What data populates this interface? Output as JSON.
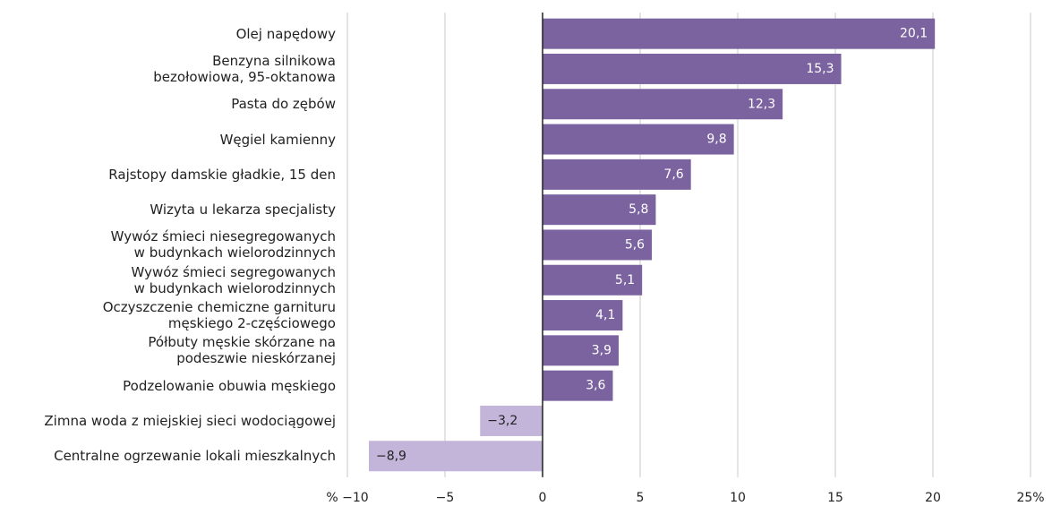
{
  "chart_data": {
    "type": "barh",
    "categories": [
      "Olej napędowy",
      "Benzyna silnikowa\nbezołowiowa, 95-oktanowa",
      "Pasta do zębów",
      "Węgiel kamienny",
      "Rajstopy damskie gładkie, 15 den",
      "Wizyta u lekarza specjalisty",
      "Wywóz śmieci niesegregowanych\nw budynkach wielorodzinnych",
      "Wywóz śmieci segregowanych\nw budynkach wielorodzinnych",
      "Oczyszczenie chemiczne garnituru\nmęskiego 2-częściowego",
      "Półbuty męskie skórzane na\npodeszwie nieskórzanej",
      "Podzelowanie obuwia męskiego",
      "Zimna woda z miejskiej sieci wodociągowej",
      "Centralne ogrzewanie lokali mieszkalnych"
    ],
    "values": [
      20.1,
      15.3,
      12.3,
      9.8,
      7.6,
      5.8,
      5.6,
      5.1,
      4.1,
      3.9,
      3.6,
      -3.2,
      -8.9
    ],
    "value_labels": [
      "20,1",
      "15,3",
      "12,3",
      "9,8",
      "7,6",
      "5,8",
      "5,6",
      "5,1",
      "4,1",
      "3,9",
      "3,6",
      "−3,2",
      "−8,9"
    ],
    "color": "#7b63a0",
    "negative_color": "#c3b5d9",
    "xlim": [
      -10,
      25
    ],
    "xticks": [
      {
        "value": -10,
        "label": "% −10"
      },
      {
        "value": -5,
        "label": "−5"
      },
      0,
      5,
      10,
      15,
      20,
      {
        "value": 25,
        "label": "25%"
      }
    ],
    "grid": true
  }
}
